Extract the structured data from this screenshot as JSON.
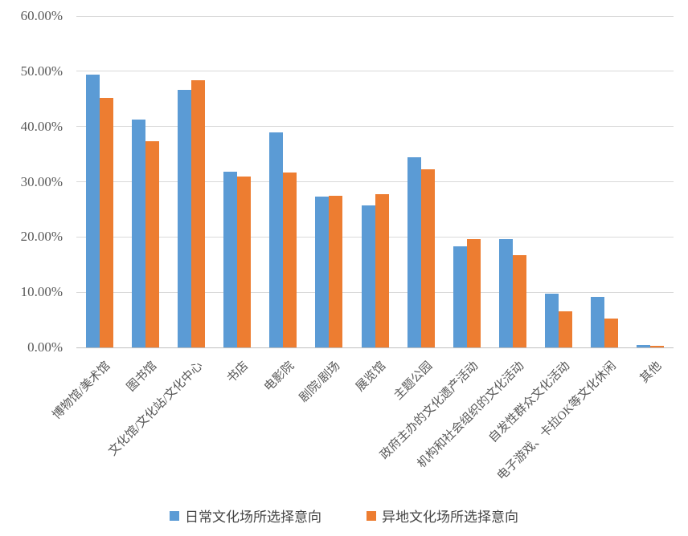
{
  "page": {
    "background": "#ffffff"
  },
  "chart_data": {
    "type": "bar",
    "title": "",
    "xlabel": "",
    "ylabel": "",
    "categories": [
      "博物馆/美术馆",
      "图书馆",
      "文化馆/文化站/文化中心",
      "书店",
      "电影院",
      "剧院/剧场",
      "展览馆",
      "主题公园",
      "政府主办的文化遗产活动",
      "机构和社会组织的文化活动",
      "自发性群众文化活动",
      "电子游戏、卡拉OK等文化休闲",
      "其他"
    ],
    "series": [
      {
        "name": "日常文化场所选择意向",
        "color": "#5B9BD5",
        "values": [
          49.4,
          41.2,
          46.7,
          31.8,
          38.9,
          27.3,
          25.7,
          34.5,
          18.3,
          19.6,
          9.7,
          9.1,
          0.5
        ]
      },
      {
        "name": "异地文化场所选择意向",
        "color": "#ED7D31",
        "values": [
          45.2,
          37.3,
          48.4,
          31.0,
          31.6,
          27.5,
          27.8,
          32.3,
          19.6,
          16.7,
          6.6,
          5.2,
          0.3
        ]
      }
    ],
    "ylim": [
      0,
      60
    ],
    "ytick_step": 10,
    "ytick_labels": [
      "0.00%",
      "10.00%",
      "20.00%",
      "30.00%",
      "40.00%",
      "50.00%",
      "60.00%"
    ],
    "grid": true,
    "legend_position": "bottom",
    "colors": {
      "axis_text": "#595959",
      "gridline": "#D9D9D9",
      "axis_line": "#BFBFBF",
      "background": "#FFFFFF"
    }
  }
}
